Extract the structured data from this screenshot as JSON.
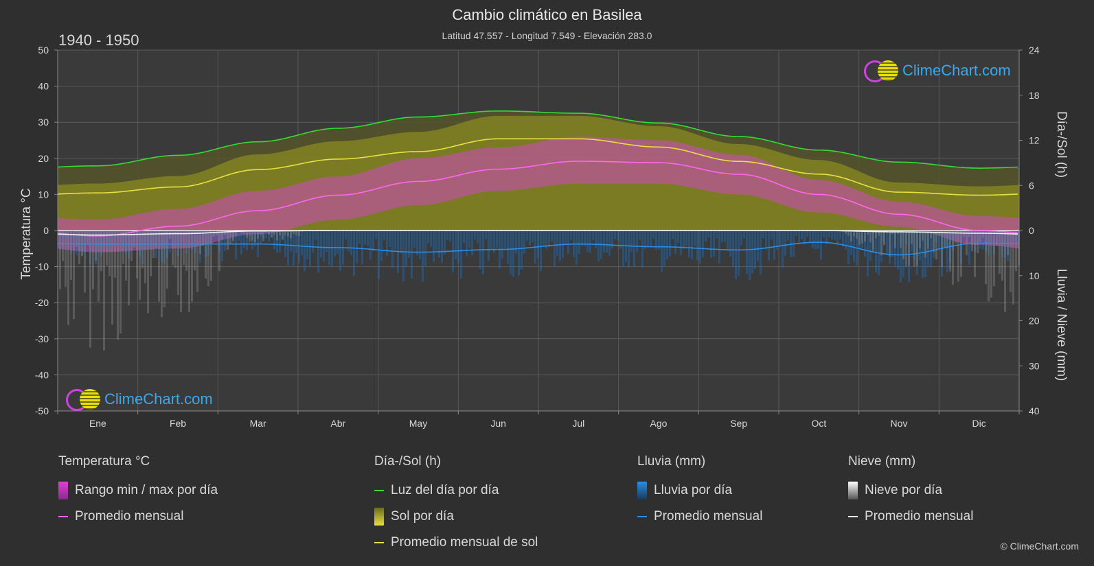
{
  "title": "Cambio climático en Basilea",
  "subtitle": "Latitud 47.557 - Longitud 7.549 - Elevación 283.0",
  "period": "1940 - 1950",
  "copyright": "© ClimeChart.com",
  "logo_text": "ClimeChart.com",
  "chart_data": {
    "type": "line",
    "categories": [
      "Ene",
      "Feb",
      "Mar",
      "Abr",
      "May",
      "Jun",
      "Jul",
      "Ago",
      "Sep",
      "Oct",
      "Nov",
      "Dic"
    ],
    "axes": {
      "left": {
        "label": "Temperatura °C",
        "min": -50,
        "max": 50,
        "ticks": [
          50,
          40,
          30,
          20,
          10,
          0,
          -10,
          -20,
          -30,
          -40,
          -50
        ]
      },
      "right_top": {
        "label": "Día-/Sol (h)",
        "min": 0,
        "max": 24,
        "ticks": [
          24,
          18,
          12,
          6,
          0
        ]
      },
      "right_bottom": {
        "label": "Lluvia / Nieve (mm)",
        "min": 0,
        "max": 40,
        "ticks": [
          0,
          10,
          20,
          30,
          40
        ]
      }
    },
    "series": [
      {
        "name": "Luz del día por día",
        "axis": "hours",
        "color": "#33dd33",
        "values": [
          8.6,
          10.0,
          11.8,
          13.6,
          15.1,
          15.9,
          15.6,
          14.3,
          12.5,
          10.7,
          9.1,
          8.3
        ]
      },
      {
        "name": "Promedio mensual de sol",
        "axis": "hours",
        "color": "#e8e040",
        "values": [
          5.0,
          5.8,
          8.1,
          9.5,
          10.5,
          12.2,
          12.2,
          11.1,
          9.2,
          7.5,
          5.1,
          4.7
        ]
      },
      {
        "name": "Temperatura promedio mensual",
        "axis": "temp",
        "color": "#ff66ee",
        "values": [
          -1.5,
          1.2,
          5.5,
          9.8,
          13.6,
          17.0,
          19.2,
          18.8,
          15.6,
          10.0,
          4.5,
          0.0
        ]
      },
      {
        "name": "Lluvia promedio mensual",
        "axis": "mm",
        "color": "#2a8ee8",
        "values": [
          3.0,
          3.0,
          3.0,
          3.8,
          4.8,
          4.2,
          3.0,
          3.6,
          4.3,
          2.6,
          5.4,
          2.8
        ]
      },
      {
        "name": "Nieve promedio mensual",
        "axis": "mm",
        "color": "#f0f0f0",
        "values": [
          1.0,
          0.7,
          0.1,
          0.0,
          0.0,
          0.0,
          0.0,
          0.0,
          0.0,
          0.0,
          0.3,
          0.6
        ]
      }
    ],
    "temp_daily_range": {
      "max": [
        3,
        6,
        11,
        15,
        20,
        23,
        26,
        25,
        21,
        14,
        8,
        4
      ],
      "min": [
        -6,
        -5,
        -1,
        3,
        7,
        11,
        13,
        13,
        10,
        5,
        1,
        -4
      ]
    }
  },
  "legend": {
    "temperature": {
      "head": "Temperatura °C",
      "items": [
        "Rango min / max por día",
        "Promedio mensual"
      ]
    },
    "sun": {
      "head": "Día-/Sol (h)",
      "items": [
        "Luz del día por día",
        "Sol por día",
        "Promedio mensual de sol"
      ]
    },
    "rain": {
      "head": "Lluvia (mm)",
      "items": [
        "Lluvia por día",
        "Promedio mensual"
      ]
    },
    "snow": {
      "head": "Nieve (mm)",
      "items": [
        "Nieve por día",
        "Promedio mensual"
      ]
    }
  },
  "colors": {
    "background": "#2f2f2f",
    "daylight": "#33dd33",
    "sun_avg": "#e8e040",
    "sun_fill": "#8a8a20",
    "temp_range": "#e040d0",
    "temp_avg": "#ff66ee",
    "rain": "#2a8ee8",
    "snow": "#f0f0f0"
  }
}
